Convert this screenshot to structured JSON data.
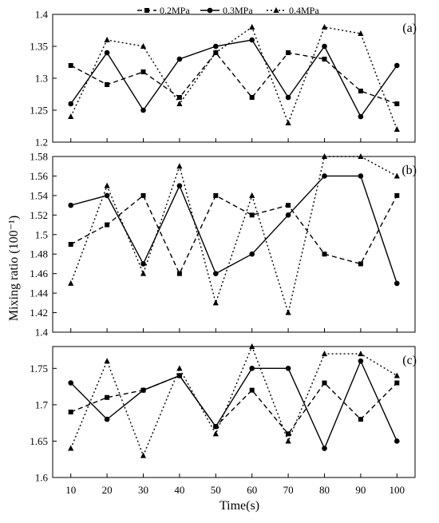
{
  "chart_data": [
    {
      "type": "line",
      "panel_label": "(a)",
      "x": [
        10,
        20,
        30,
        40,
        50,
        60,
        70,
        80,
        90,
        100
      ],
      "ylim": [
        1.2,
        1.4
      ],
      "yticks": [
        "1.2",
        "1.25",
        "1.3",
        "1.35",
        "1.4"
      ],
      "series": [
        {
          "name": "0.2MPa",
          "values": [
            1.32,
            1.29,
            1.31,
            1.27,
            1.34,
            1.27,
            1.34,
            1.33,
            1.28,
            1.26
          ]
        },
        {
          "name": "0.3MPa",
          "values": [
            1.26,
            1.34,
            1.25,
            1.33,
            1.35,
            1.36,
            1.27,
            1.35,
            1.24,
            1.32
          ]
        },
        {
          "name": "0.4MPa",
          "values": [
            1.24,
            1.36,
            1.35,
            1.26,
            1.34,
            1.38,
            1.23,
            1.38,
            1.37,
            1.22
          ]
        }
      ]
    },
    {
      "type": "line",
      "panel_label": "(b)",
      "x": [
        10,
        20,
        30,
        40,
        50,
        60,
        70,
        80,
        90,
        100
      ],
      "ylim": [
        1.4,
        1.58
      ],
      "yticks": [
        "1.4",
        "1.42",
        "1.44",
        "1.46",
        "1.48",
        "1.5",
        "1.52",
        "1.54",
        "1.56",
        "1.58"
      ],
      "series": [
        {
          "name": "0.2MPa",
          "values": [
            1.49,
            1.51,
            1.54,
            1.46,
            1.54,
            1.52,
            1.53,
            1.48,
            1.47,
            1.54
          ]
        },
        {
          "name": "0.3MPa",
          "values": [
            1.53,
            1.54,
            1.47,
            1.55,
            1.46,
            1.48,
            1.52,
            1.56,
            1.56,
            1.45
          ]
        },
        {
          "name": "0.4MPa",
          "values": [
            1.45,
            1.55,
            1.46,
            1.57,
            1.43,
            1.54,
            1.42,
            1.58,
            1.58,
            1.56
          ]
        }
      ]
    },
    {
      "type": "line",
      "panel_label": "(c)",
      "x": [
        10,
        20,
        30,
        40,
        50,
        60,
        70,
        80,
        90,
        100
      ],
      "xticks": [
        "10",
        "20",
        "30",
        "40",
        "50",
        "60",
        "70",
        "80",
        "90",
        "100"
      ],
      "ylim": [
        1.6,
        1.78
      ],
      "yticks": [
        "1.6",
        "1.65",
        "1.7",
        "1.75"
      ],
      "series": [
        {
          "name": "0.2MPa",
          "values": [
            1.69,
            1.71,
            1.72,
            1.74,
            1.67,
            1.72,
            1.66,
            1.73,
            1.68,
            1.73
          ]
        },
        {
          "name": "0.3MPa",
          "values": [
            1.73,
            1.68,
            1.72,
            1.74,
            1.67,
            1.75,
            1.75,
            1.64,
            1.76,
            1.65
          ]
        },
        {
          "name": "0.4MPa",
          "values": [
            1.64,
            1.76,
            1.63,
            1.75,
            1.66,
            1.78,
            1.65,
            1.77,
            1.77,
            1.74
          ]
        }
      ]
    }
  ],
  "legend": {
    "placement": "top-center",
    "items": [
      {
        "label": "0.2MPa",
        "style": "dashed",
        "marker": "square"
      },
      {
        "label": "0.3MPa",
        "style": "solid",
        "marker": "circle"
      },
      {
        "label": "0.4MPa",
        "style": "dotted",
        "marker": "triangle"
      }
    ]
  },
  "xlabel": "Time(s)",
  "ylabel": "Mixing ratio (100⁻¹)",
  "colors": {
    "line": "#000000",
    "background": "#ffffff"
  }
}
